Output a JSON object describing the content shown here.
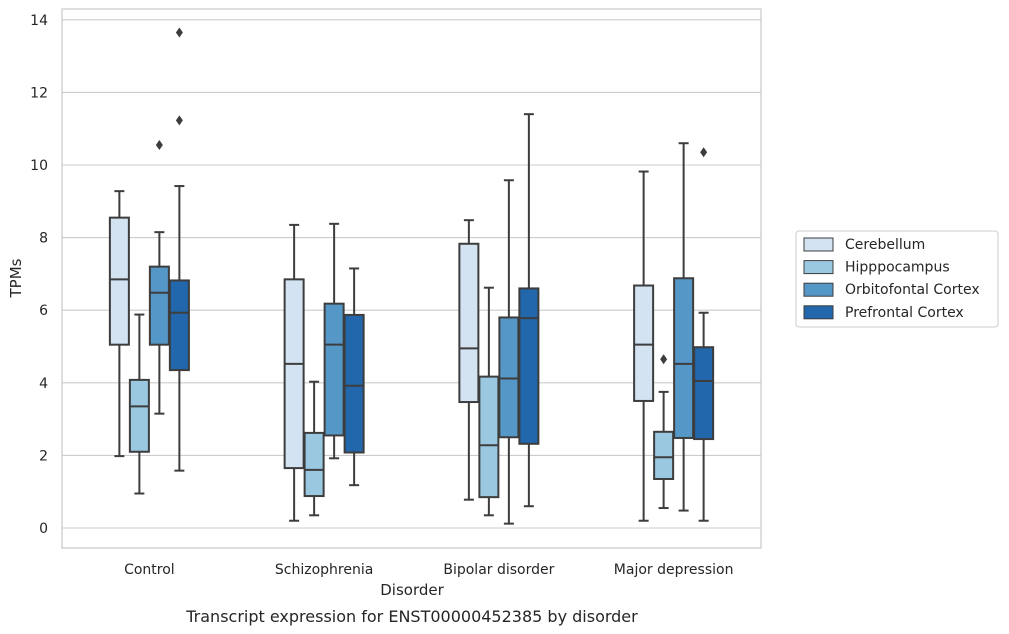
{
  "chart_data": {
    "type": "boxplot",
    "xlabel": "Disorder",
    "ylabel": "TPMs",
    "caption": "Transcript expression for ENST00000452385 by disorder",
    "ylim": [
      -0.5,
      14.3
    ],
    "yticks": [
      "0",
      "2",
      "4",
      "6",
      "8",
      "10",
      "12",
      "14"
    ],
    "grid": "horizontal",
    "legend_position": "right",
    "categories": [
      "Control",
      "Schizophrenia",
      "Bipolar disorder",
      "Major depression"
    ],
    "series": [
      {
        "name": "Cerebellum",
        "color": "#d3e3f1",
        "boxes": [
          {
            "whislo": 1.98,
            "q1": 5.05,
            "med": 6.85,
            "q3": 8.55,
            "whishi": 9.28,
            "fliers": []
          },
          {
            "whislo": 0.2,
            "q1": 1.65,
            "med": 4.52,
            "q3": 6.85,
            "whishi": 8.35,
            "fliers": []
          },
          {
            "whislo": 0.78,
            "q1": 3.47,
            "med": 4.95,
            "q3": 7.83,
            "whishi": 8.48,
            "fliers": []
          },
          {
            "whislo": 0.2,
            "q1": 3.5,
            "med": 5.05,
            "q3": 6.68,
            "whishi": 9.82,
            "fliers": []
          }
        ]
      },
      {
        "name": "Hipppocampus",
        "color": "#9ac8e0",
        "boxes": [
          {
            "whislo": 0.95,
            "q1": 2.1,
            "med": 3.35,
            "q3": 4.08,
            "whishi": 5.88,
            "fliers": []
          },
          {
            "whislo": 0.35,
            "q1": 0.88,
            "med": 1.6,
            "q3": 2.62,
            "whishi": 4.03,
            "fliers": []
          },
          {
            "whislo": 0.35,
            "q1": 0.85,
            "med": 2.28,
            "q3": 4.17,
            "whishi": 6.62,
            "fliers": []
          },
          {
            "whislo": 0.55,
            "q1": 1.35,
            "med": 1.95,
            "q3": 2.65,
            "whishi": 3.75,
            "fliers": [
              4.65
            ]
          }
        ]
      },
      {
        "name": "Orbitofontal Cortex",
        "color": "#5598c8",
        "boxes": [
          {
            "whislo": 3.15,
            "q1": 5.05,
            "med": 6.48,
            "q3": 7.2,
            "whishi": 8.15,
            "fliers": [
              10.55
            ]
          },
          {
            "whislo": 1.92,
            "q1": 2.55,
            "med": 5.05,
            "q3": 6.18,
            "whishi": 8.38,
            "fliers": []
          },
          {
            "whislo": 0.12,
            "q1": 2.5,
            "med": 4.12,
            "q3": 5.8,
            "whishi": 9.58,
            "fliers": []
          },
          {
            "whislo": 0.48,
            "q1": 2.48,
            "med": 4.52,
            "q3": 6.88,
            "whishi": 10.6,
            "fliers": []
          }
        ]
      },
      {
        "name": "Prefrontal Cortex",
        "color": "#2266ac",
        "boxes": [
          {
            "whislo": 1.58,
            "q1": 4.35,
            "med": 5.93,
            "q3": 6.82,
            "whishi": 9.42,
            "fliers": [
              11.23,
              13.65
            ]
          },
          {
            "whislo": 1.18,
            "q1": 2.08,
            "med": 3.92,
            "q3": 5.87,
            "whishi": 7.15,
            "fliers": []
          },
          {
            "whislo": 0.6,
            "q1": 2.32,
            "med": 5.78,
            "q3": 6.6,
            "whishi": 11.4,
            "fliers": []
          },
          {
            "whislo": 0.2,
            "q1": 2.45,
            "med": 4.05,
            "q3": 4.98,
            "whishi": 5.93,
            "fliers": [
              10.35
            ]
          }
        ]
      }
    ]
  }
}
